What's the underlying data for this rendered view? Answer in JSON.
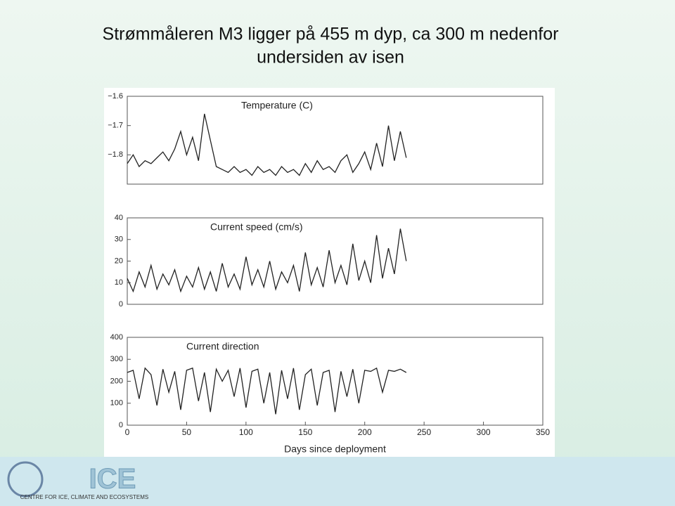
{
  "slide": {
    "title_lines": [
      "Strømmåleren M3 ligger på 455 m dyp, ca 300 m nedenfor",
      "undersiden av isen"
    ],
    "footer_text": "CENTRE FOR ICE, CLIMATE AND ECOSYSTEMS",
    "logo_text": "ICE"
  },
  "chart_data": [
    {
      "type": "line",
      "annotation": "Temperature (C)",
      "x": [
        0,
        5,
        10,
        15,
        20,
        25,
        30,
        35,
        40,
        45,
        50,
        55,
        60,
        65,
        70,
        75,
        80,
        85,
        90,
        95,
        100,
        105,
        110,
        115,
        120,
        125,
        130,
        135,
        140,
        145,
        150,
        155,
        160,
        165,
        170,
        175,
        180,
        185,
        190,
        195,
        200,
        205,
        210,
        215,
        220,
        225,
        230,
        235
      ],
      "values": [
        -1.83,
        -1.8,
        -1.84,
        -1.82,
        -1.83,
        -1.81,
        -1.79,
        -1.82,
        -1.78,
        -1.72,
        -1.8,
        -1.74,
        -1.82,
        -1.66,
        -1.75,
        -1.84,
        -1.85,
        -1.86,
        -1.84,
        -1.86,
        -1.85,
        -1.87,
        -1.84,
        -1.86,
        -1.85,
        -1.87,
        -1.84,
        -1.86,
        -1.85,
        -1.87,
        -1.83,
        -1.86,
        -1.82,
        -1.85,
        -1.84,
        -1.86,
        -1.82,
        -1.8,
        -1.86,
        -1.83,
        -1.79,
        -1.85,
        -1.76,
        -1.84,
        -1.7,
        -1.82,
        -1.72,
        -1.81
      ],
      "color": "#222222",
      "xlim": [
        0,
        350
      ],
      "ylim": [
        -1.9,
        -1.6
      ],
      "yticks": [
        {
          "value": -1.6,
          "label": "−1.6"
        },
        {
          "value": -1.7,
          "label": "−1.7"
        },
        {
          "value": -1.8,
          "label": "−1.8"
        }
      ]
    },
    {
      "type": "line",
      "annotation": "Current speed (cm/s)",
      "x": [
        0,
        5,
        10,
        15,
        20,
        25,
        30,
        35,
        40,
        45,
        50,
        55,
        60,
        65,
        70,
        75,
        80,
        85,
        90,
        95,
        100,
        105,
        110,
        115,
        120,
        125,
        130,
        135,
        140,
        145,
        150,
        155,
        160,
        165,
        170,
        175,
        180,
        185,
        190,
        195,
        200,
        205,
        210,
        215,
        220,
        225,
        230,
        235
      ],
      "values": [
        12,
        6,
        15,
        8,
        18,
        7,
        14,
        9,
        16,
        6,
        13,
        8,
        17,
        7,
        15,
        6,
        19,
        8,
        14,
        7,
        22,
        9,
        16,
        8,
        20,
        7,
        15,
        10,
        18,
        6,
        24,
        9,
        17,
        8,
        25,
        10,
        18,
        9,
        28,
        11,
        20,
        10,
        32,
        12,
        26,
        14,
        35,
        20
      ],
      "color": "#222222",
      "xlim": [
        0,
        350
      ],
      "ylim": [
        0,
        40
      ],
      "yticks": [
        0,
        10,
        20,
        30,
        40
      ]
    },
    {
      "type": "line",
      "annotation": "Current direction",
      "xlabel": "Days since deployment",
      "x": [
        0,
        5,
        10,
        15,
        20,
        25,
        30,
        35,
        40,
        45,
        50,
        55,
        60,
        65,
        70,
        75,
        80,
        85,
        90,
        95,
        100,
        105,
        110,
        115,
        120,
        125,
        130,
        135,
        140,
        145,
        150,
        155,
        160,
        165,
        170,
        175,
        180,
        185,
        190,
        195,
        200,
        205,
        210,
        215,
        220,
        225,
        230,
        235
      ],
      "values": [
        240,
        250,
        120,
        260,
        230,
        90,
        255,
        150,
        245,
        70,
        250,
        260,
        110,
        240,
        60,
        255,
        200,
        250,
        130,
        260,
        80,
        245,
        255,
        100,
        240,
        50,
        250,
        120,
        260,
        70,
        230,
        255,
        90,
        240,
        250,
        60,
        245,
        130,
        255,
        100,
        250,
        245,
        260,
        150,
        250,
        245,
        255,
        240
      ],
      "color": "#222222",
      "xlim": [
        0,
        350
      ],
      "ylim": [
        0,
        400
      ],
      "yticks": [
        0,
        100,
        200,
        300,
        400
      ],
      "xticks": [
        0,
        50,
        100,
        150,
        200,
        250,
        300,
        350
      ]
    }
  ]
}
